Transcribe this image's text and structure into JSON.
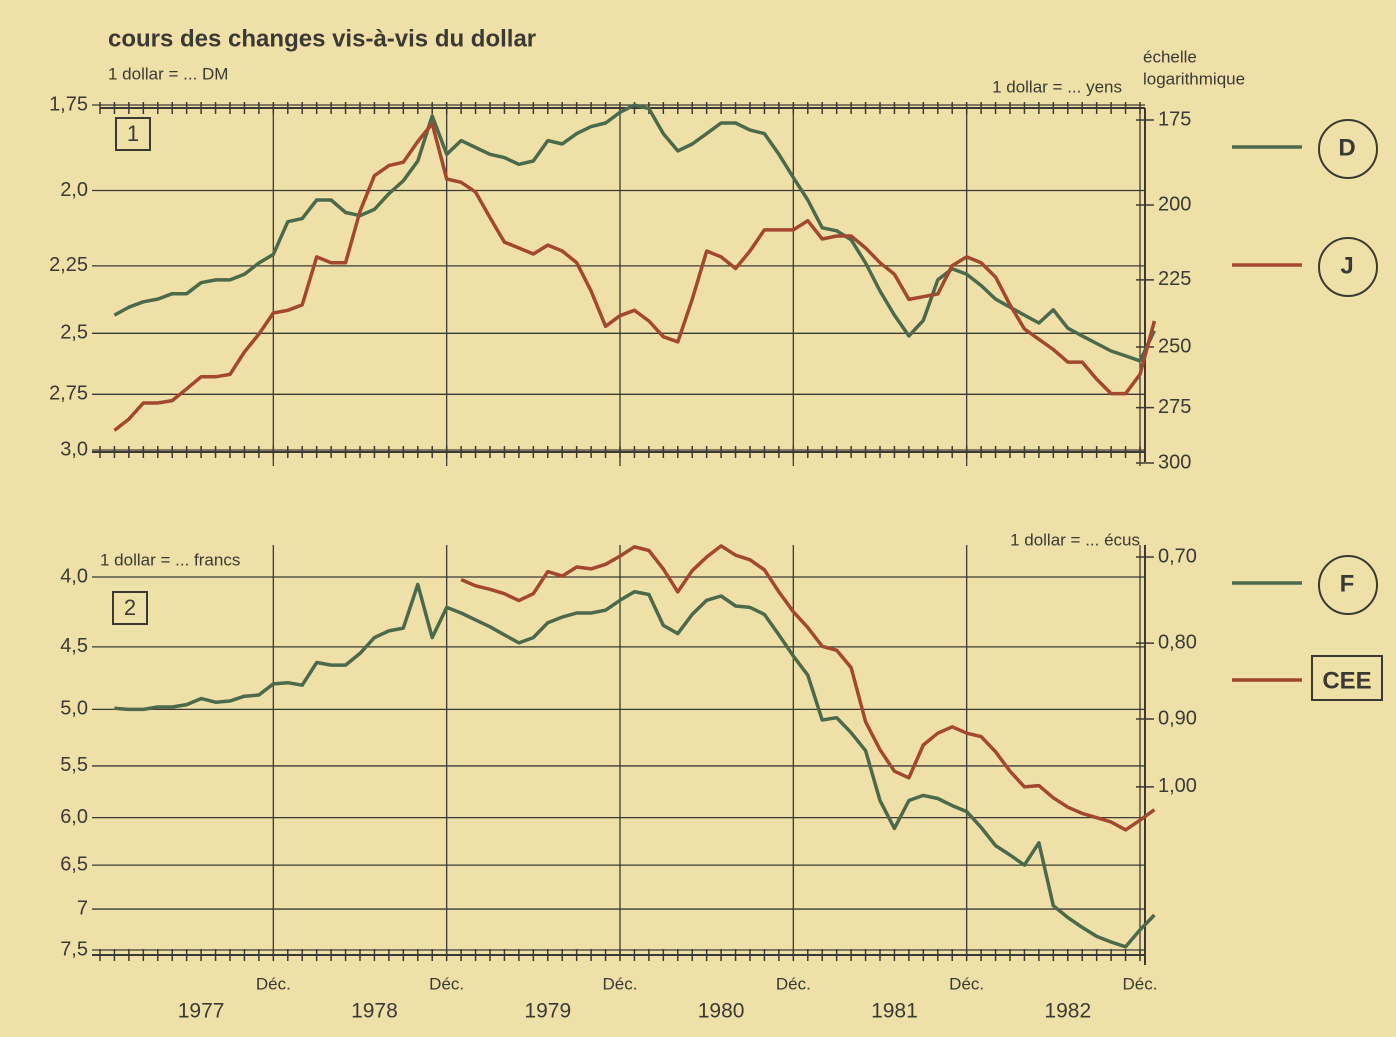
{
  "chart_data": [
    {
      "type": "line",
      "title": "cours des changes vis-à-vis du dollar",
      "panel_label": "1",
      "ylabel": "1 dollar = ... DM",
      "y2label": "1 dollar = ... yens",
      "scale_note": [
        "échelle",
        "logarithmique"
      ],
      "log_scale": true,
      "y_inverted": true,
      "grid": true,
      "x": [
        "1977-01",
        "1977-02",
        "1977-03",
        "1977-04",
        "1977-05",
        "1977-06",
        "1977-07",
        "1977-08",
        "1977-09",
        "1977-10",
        "1977-11",
        "1977-12",
        "1978-01",
        "1978-02",
        "1978-03",
        "1978-04",
        "1978-05",
        "1978-06",
        "1978-07",
        "1978-08",
        "1978-09",
        "1978-10",
        "1978-11",
        "1978-12",
        "1979-01",
        "1979-02",
        "1979-03",
        "1979-04",
        "1979-05",
        "1979-06",
        "1979-07",
        "1979-08",
        "1979-09",
        "1979-10",
        "1979-11",
        "1979-12",
        "1980-01",
        "1980-02",
        "1980-03",
        "1980-04",
        "1980-05",
        "1980-06",
        "1980-07",
        "1980-08",
        "1980-09",
        "1980-10",
        "1980-11",
        "1980-12",
        "1981-01",
        "1981-02",
        "1981-03",
        "1981-04",
        "1981-05",
        "1981-06",
        "1981-07",
        "1981-08",
        "1981-09",
        "1981-10",
        "1981-11",
        "1981-12",
        "1982-01",
        "1982-02",
        "1982-03",
        "1982-04",
        "1982-05",
        "1982-06",
        "1982-07",
        "1982-08",
        "1982-09",
        "1982-10",
        "1982-11",
        "1982-12",
        "1983-01"
      ],
      "xlim": [
        "1976-12",
        "1982-12"
      ],
      "xticks": [
        "1977-12",
        "1978-12",
        "1979-12",
        "1980-12",
        "1981-12",
        "1982-12"
      ],
      "ylim": [
        1.75,
        3.0
      ],
      "yticks": [
        {
          "value": 1.75,
          "label": "1,75"
        },
        {
          "value": 2,
          "label": "2,0"
        },
        {
          "value": 2.25,
          "label": "2,25"
        },
        {
          "value": 2.5,
          "label": "2,5"
        },
        {
          "value": 2.75,
          "label": "2,75"
        },
        {
          "value": 3,
          "label": "3,0"
        }
      ],
      "y2lim": [
        175,
        300
      ],
      "y2ticks": [
        175,
        200,
        225,
        250,
        275,
        300
      ],
      "series": [
        {
          "name": "D",
          "color": "#4b6a4c",
          "values": [
            2.43,
            2.4,
            2.38,
            2.37,
            2.35,
            2.35,
            2.31,
            2.3,
            2.3,
            2.28,
            2.24,
            2.21,
            2.1,
            2.09,
            2.03,
            2.03,
            2.07,
            2.08,
            2.06,
            2.01,
            1.97,
            1.91,
            1.78,
            1.89,
            1.85,
            1.87,
            1.89,
            1.9,
            1.92,
            1.91,
            1.85,
            1.86,
            1.83,
            1.81,
            1.8,
            1.77,
            1.75,
            1.76,
            1.83,
            1.88,
            1.86,
            1.83,
            1.8,
            1.8,
            1.82,
            1.83,
            1.89,
            1.96,
            2.03,
            2.12,
            2.13,
            2.16,
            2.24,
            2.34,
            2.43,
            2.51,
            2.45,
            2.3,
            2.26,
            2.28,
            2.32,
            2.37,
            2.4,
            2.43,
            2.46,
            2.41,
            2.48,
            2.51,
            2.54,
            2.57,
            2.59,
            2.61,
            2.49
          ]
        },
        {
          "name": "J",
          "color": "#a4472f",
          "axis": "y2",
          "values": [
            285,
            280,
            273,
            273,
            272,
            267,
            262,
            262,
            261,
            252,
            245,
            237,
            236,
            234,
            217,
            219,
            219,
            202,
            191,
            188,
            187,
            181,
            176,
            192,
            193,
            196,
            204,
            212,
            214,
            216,
            213,
            215,
            219,
            229,
            242,
            238,
            236,
            240,
            246,
            248,
            232,
            215,
            217,
            221,
            215,
            208,
            208,
            208,
            205,
            211,
            210,
            210,
            214,
            219,
            223,
            232,
            231,
            230,
            220,
            217,
            219,
            224,
            234,
            243,
            247,
            251,
            256,
            256,
            263,
            269,
            269,
            261,
            240
          ]
        }
      ]
    },
    {
      "type": "line",
      "panel_label": "2",
      "ylabel": "1 dollar = ... francs",
      "y2label": "1 dollar = ... écus",
      "log_scale": true,
      "y_inverted": true,
      "grid": true,
      "x": [
        "1977-01",
        "1977-02",
        "1977-03",
        "1977-04",
        "1977-05",
        "1977-06",
        "1977-07",
        "1977-08",
        "1977-09",
        "1977-10",
        "1977-11",
        "1977-12",
        "1978-01",
        "1978-02",
        "1978-03",
        "1978-04",
        "1978-05",
        "1978-06",
        "1978-07",
        "1978-08",
        "1978-09",
        "1978-10",
        "1978-11",
        "1978-12",
        "1979-01",
        "1979-02",
        "1979-03",
        "1979-04",
        "1979-05",
        "1979-06",
        "1979-07",
        "1979-08",
        "1979-09",
        "1979-10",
        "1979-11",
        "1979-12",
        "1980-01",
        "1980-02",
        "1980-03",
        "1980-04",
        "1980-05",
        "1980-06",
        "1980-07",
        "1980-08",
        "1980-09",
        "1980-10",
        "1980-11",
        "1980-12",
        "1981-01",
        "1981-02",
        "1981-03",
        "1981-04",
        "1981-05",
        "1981-06",
        "1981-07",
        "1981-08",
        "1981-09",
        "1981-10",
        "1981-11",
        "1981-12",
        "1982-01",
        "1982-02",
        "1982-03",
        "1982-04",
        "1982-05",
        "1982-06",
        "1982-07",
        "1982-08",
        "1982-09",
        "1982-10",
        "1982-11",
        "1982-12",
        "1983-01"
      ],
      "xlim": [
        "1976-12",
        "1982-12"
      ],
      "xticks": [
        {
          "value": "1977-12",
          "label": "Déc."
        },
        {
          "value": "1978-12",
          "label": "Déc."
        },
        {
          "value": "1979-12",
          "label": "Déc."
        },
        {
          "value": "1980-12",
          "label": "Déc."
        },
        {
          "value": "1981-12",
          "label": "Déc."
        },
        {
          "value": "1982-12",
          "label": "Déc."
        }
      ],
      "year_labels": [
        "1977",
        "1978",
        "1979",
        "1980",
        "1981",
        "1982"
      ],
      "ylim": [
        4.0,
        7.5
      ],
      "yticks": [
        {
          "value": 4,
          "label": "4,0"
        },
        {
          "value": 4.5,
          "label": "4,5"
        },
        {
          "value": 5,
          "label": "5,0"
        },
        {
          "value": 5.5,
          "label": "5,5"
        },
        {
          "value": 6,
          "label": "6,0"
        },
        {
          "value": 6.5,
          "label": "6,5"
        },
        7,
        {
          "value": 7.5,
          "label": "7,5"
        }
      ],
      "y2lim": [
        0.7,
        1.3
      ],
      "y2ticks": [
        {
          "value": 0.7,
          "label": "0,70"
        },
        {
          "value": 0.8,
          "label": "0,80"
        },
        {
          "value": 0.9,
          "label": "0,90"
        },
        {
          "value": 1.0,
          "label": "1,00"
        }
      ],
      "series": [
        {
          "name": "F",
          "color": "#4b6a4c",
          "values": [
            4.99,
            5.0,
            5.0,
            4.98,
            4.98,
            4.96,
            4.91,
            4.94,
            4.93,
            4.89,
            4.88,
            4.79,
            4.78,
            4.8,
            4.62,
            4.64,
            4.64,
            4.55,
            4.43,
            4.38,
            4.36,
            4.05,
            4.43,
            4.21,
            4.25,
            4.3,
            4.35,
            4.41,
            4.47,
            4.43,
            4.32,
            4.28,
            4.25,
            4.25,
            4.23,
            4.16,
            4.1,
            4.12,
            4.34,
            4.4,
            4.26,
            4.16,
            4.13,
            4.2,
            4.21,
            4.26,
            4.41,
            4.57,
            4.72,
            5.09,
            5.07,
            5.2,
            5.36,
            5.83,
            6.11,
            5.83,
            5.78,
            5.81,
            5.88,
            5.94,
            6.1,
            6.29,
            6.39,
            6.5,
            6.26,
            6.96,
            7.1,
            7.22,
            7.33,
            7.4,
            7.46,
            7.25,
            7.07
          ]
        },
        {
          "name": "CEE",
          "color": "#a4472f",
          "axis": "y2",
          "values": [
            null,
            null,
            null,
            null,
            null,
            null,
            null,
            null,
            null,
            null,
            null,
            null,
            null,
            null,
            null,
            null,
            null,
            null,
            null,
            null,
            null,
            null,
            null,
            null,
            0.725,
            0.732,
            0.736,
            0.741,
            0.749,
            0.741,
            0.716,
            0.721,
            0.711,
            0.713,
            0.708,
            0.699,
            0.689,
            0.693,
            0.713,
            0.739,
            0.715,
            0.7,
            0.688,
            0.698,
            0.703,
            0.714,
            0.739,
            0.762,
            0.781,
            0.804,
            0.809,
            0.831,
            0.904,
            0.944,
            0.976,
            0.986,
            0.937,
            0.92,
            0.911,
            0.92,
            0.925,
            0.947,
            0.976,
            1.0,
            0.998,
            1.017,
            1.032,
            1.042,
            1.049,
            1.056,
            1.069,
            1.053,
            1.036
          ]
        }
      ]
    }
  ]
}
